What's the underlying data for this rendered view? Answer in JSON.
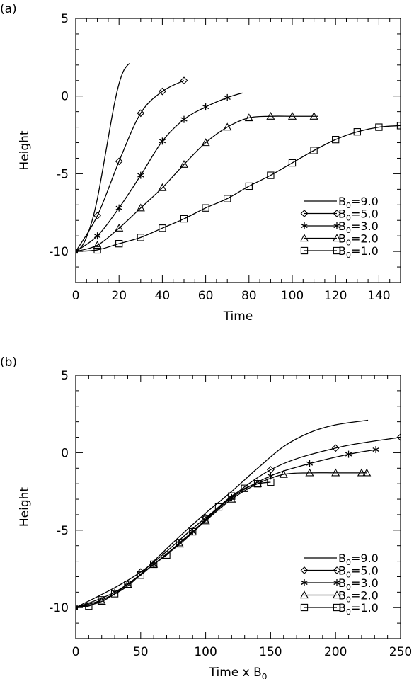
{
  "chart_data": [
    {
      "panel_label": "(a)",
      "type": "line",
      "xlabel": "Time",
      "xlabel_sub": "",
      "ylabel": "Height",
      "xlim": [
        0,
        150
      ],
      "ylim": [
        -12,
        5
      ],
      "xticks": [
        0,
        20,
        40,
        60,
        80,
        100,
        120,
        140
      ],
      "yticks": [
        -10,
        -5,
        0,
        5
      ],
      "legend_position": "bottom-right",
      "series": [
        {
          "name": "9.0",
          "marker": "none",
          "x": [
            0,
            2,
            4,
            6,
            8,
            10,
            12,
            14,
            16,
            18,
            20,
            22,
            24,
            25
          ],
          "y": [
            -10.0,
            -9.8,
            -9.4,
            -8.7,
            -7.8,
            -6.6,
            -5.1,
            -3.5,
            -1.9,
            -0.4,
            0.8,
            1.6,
            2.0,
            2.1
          ]
        },
        {
          "name": "5.0",
          "marker": "diamond",
          "x": [
            0,
            10,
            20,
            30,
            40,
            50
          ],
          "y": [
            -10.0,
            -7.7,
            -4.2,
            -1.1,
            0.3,
            1.0
          ]
        },
        {
          "name": "3.0",
          "marker": "asterisk",
          "x": [
            0,
            10,
            20,
            30,
            40,
            50,
            60,
            70,
            77
          ],
          "y": [
            -10.0,
            -9.0,
            -7.2,
            -5.1,
            -2.9,
            -1.5,
            -0.7,
            -0.1,
            0.2
          ]
        },
        {
          "name": "2.0",
          "marker": "triangle",
          "x": [
            0,
            10,
            20,
            30,
            40,
            50,
            60,
            70,
            80,
            90,
            100,
            110,
            112
          ],
          "y": [
            -10.0,
            -9.6,
            -8.5,
            -7.2,
            -5.9,
            -4.4,
            -3.0,
            -2.0,
            -1.4,
            -1.3,
            -1.3,
            -1.3,
            -1.3
          ]
        },
        {
          "name": "1.0",
          "marker": "square",
          "x": [
            0,
            10,
            20,
            30,
            40,
            50,
            60,
            70,
            80,
            90,
            100,
            110,
            120,
            130,
            140,
            150
          ],
          "y": [
            -10.0,
            -9.9,
            -9.5,
            -9.1,
            -8.5,
            -7.9,
            -7.2,
            -6.6,
            -5.8,
            -5.1,
            -4.3,
            -3.5,
            -2.8,
            -2.3,
            -2.0,
            -1.9
          ]
        }
      ]
    },
    {
      "panel_label": "(b)",
      "type": "line",
      "xlabel": "Time x B",
      "xlabel_sub": "0",
      "ylabel": "Height",
      "xlim": [
        0,
        250
      ],
      "ylim": [
        -12,
        5
      ],
      "xticks": [
        0,
        50,
        100,
        150,
        200,
        250
      ],
      "yticks": [
        -10,
        -5,
        0,
        5
      ],
      "legend_position": "bottom-right",
      "series": [
        {
          "name": "9.0",
          "marker": "none",
          "x": [
            0,
            20,
            40,
            60,
            80,
            100,
            120,
            140,
            160,
            180,
            200,
            225
          ],
          "y": [
            -10.0,
            -9.5,
            -8.6,
            -7.0,
            -5.4,
            -3.9,
            -2.5,
            -1.0,
            0.4,
            1.3,
            1.8,
            2.1
          ]
        },
        {
          "name": "5.0",
          "marker": "diamond",
          "x": [
            0,
            50,
            100,
            150,
            200,
            250
          ],
          "y": [
            -10.0,
            -7.7,
            -4.2,
            -1.1,
            0.3,
            1.0
          ]
        },
        {
          "name": "3.0",
          "marker": "asterisk",
          "x": [
            0,
            30,
            60,
            90,
            120,
            150,
            180,
            210,
            231
          ],
          "y": [
            -10.0,
            -9.0,
            -7.2,
            -5.1,
            -2.9,
            -1.5,
            -0.7,
            -0.1,
            0.2
          ]
        },
        {
          "name": "2.0",
          "marker": "triangle",
          "x": [
            0,
            20,
            40,
            60,
            80,
            100,
            120,
            140,
            160,
            180,
            200,
            220,
            224
          ],
          "y": [
            -10.0,
            -9.6,
            -8.5,
            -7.2,
            -5.9,
            -4.4,
            -3.0,
            -2.0,
            -1.4,
            -1.3,
            -1.3,
            -1.3,
            -1.3
          ]
        },
        {
          "name": "1.0",
          "marker": "square",
          "x": [
            0,
            10,
            20,
            30,
            40,
            50,
            60,
            70,
            80,
            90,
            100,
            110,
            120,
            130,
            140,
            150
          ],
          "y": [
            -10.0,
            -9.9,
            -9.5,
            -9.1,
            -8.5,
            -7.9,
            -7.2,
            -6.6,
            -5.8,
            -5.1,
            -4.3,
            -3.5,
            -2.8,
            -2.3,
            -2.0,
            -1.9
          ]
        }
      ]
    }
  ],
  "legend": {
    "symbol_prefix": "B",
    "symbol_sub": "0",
    "equals": "="
  }
}
